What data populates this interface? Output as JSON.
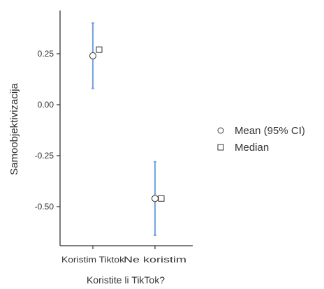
{
  "chart_data": {
    "type": "scatter",
    "title": "",
    "xlabel": "Koristite li TikTok?",
    "ylabel": "Samoobjektivizacija",
    "categories": [
      "Koristim Tiktok",
      "Ne koristim"
    ],
    "y_ticks": [
      0.25,
      0.0,
      -0.25,
      -0.5
    ],
    "y_tick_labels": [
      "0.25",
      "0.00",
      "-0.25",
      "-0.50"
    ],
    "ylim": [
      -0.7,
      0.47
    ],
    "series": [
      {
        "name": "Mean (95% CI)",
        "marker": "circle",
        "values": [
          0.24,
          -0.46
        ]
      },
      {
        "name": "Median",
        "marker": "square",
        "values": [
          0.27,
          -0.46
        ]
      }
    ],
    "ci": {
      "lower": [
        0.08,
        -0.64
      ],
      "upper": [
        0.4,
        -0.28
      ]
    },
    "ci_color": "#7aa6e0",
    "legend_placement": "right",
    "grid": false
  }
}
